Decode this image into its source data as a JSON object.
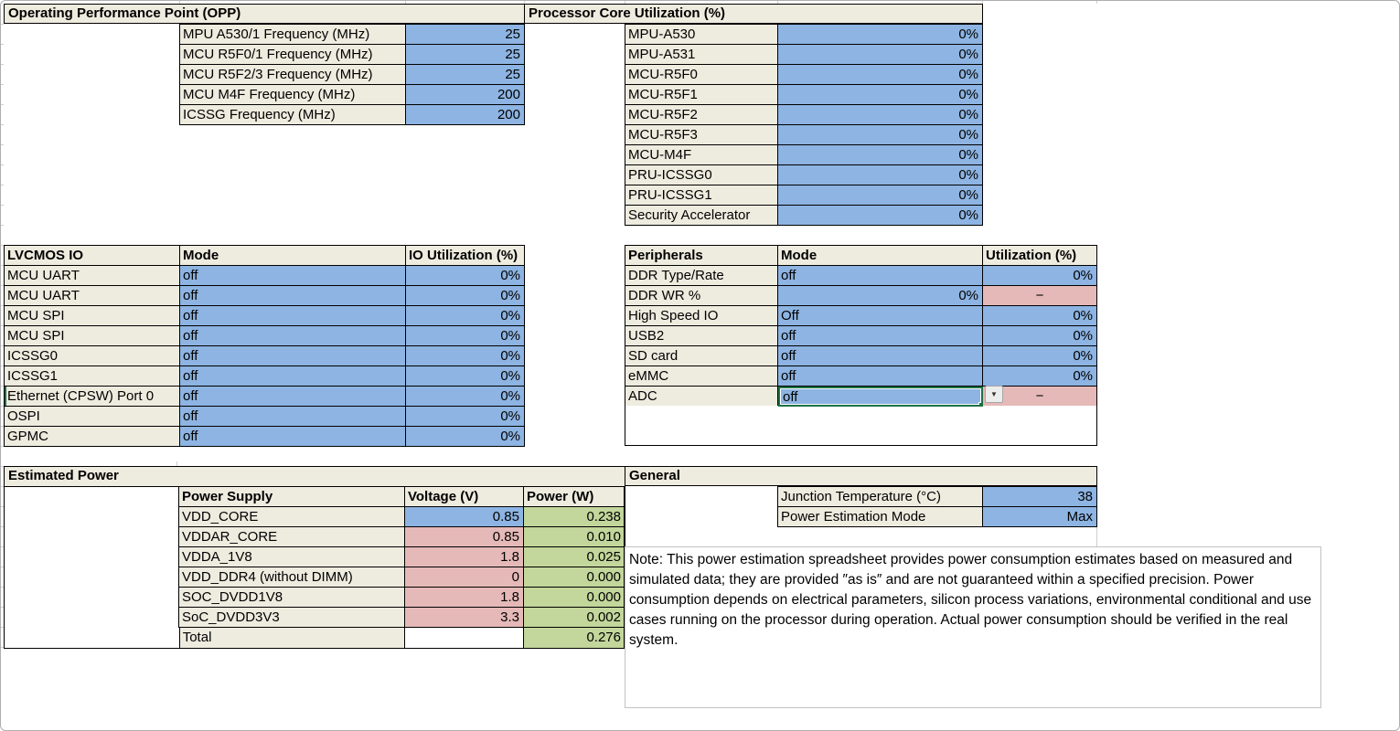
{
  "colors": {
    "input_blue": "#8db4e2",
    "calc_pink": "#e5b9b8",
    "calc_green": "#c3d69b",
    "header_beige": "#eeebdf",
    "selection_green": "#1e7145"
  },
  "icons": {
    "dropdown_arrow": "▼"
  },
  "opp": {
    "title": "Operating Performance Point (OPP)",
    "rows": [
      {
        "label": "MPU A530/1 Frequency (MHz)",
        "value": "25"
      },
      {
        "label": "MCU R5F0/1 Frequency (MHz)",
        "value": "25"
      },
      {
        "label": "MCU R5F2/3 Frequency (MHz)",
        "value": "25"
      },
      {
        "label": "MCU M4F Frequency (MHz)",
        "value": "200"
      },
      {
        "label": "ICSSG Frequency (MHz)",
        "value": "200"
      }
    ]
  },
  "core_utilization": {
    "title": "Processor Core Utilization (%)",
    "rows": [
      {
        "label": "MPU-A530",
        "value": "0%"
      },
      {
        "label": "MPU-A531",
        "value": "0%"
      },
      {
        "label": "MCU-R5F0",
        "value": "0%"
      },
      {
        "label": "MCU-R5F1",
        "value": "0%"
      },
      {
        "label": "MCU-R5F2",
        "value": "0%"
      },
      {
        "label": "MCU-R5F3",
        "value": "0%"
      },
      {
        "label": "MCU-M4F",
        "value": "0%"
      },
      {
        "label": "PRU-ICSSG0",
        "value": "0%"
      },
      {
        "label": "PRU-ICSSG1",
        "value": "0%"
      },
      {
        "label": "Security Accelerator",
        "value": "0%"
      }
    ]
  },
  "lvcmos_io": {
    "headers": {
      "name": "LVCMOS IO",
      "mode": "Mode",
      "utilization": "IO Utilization (%)"
    },
    "rows": [
      {
        "label": "MCU UART",
        "mode": "off",
        "utilization": "0%",
        "label_class": ""
      },
      {
        "label": "MCU UART",
        "mode": "off",
        "utilization": "0%",
        "label_class": ""
      },
      {
        "label": "MCU SPI",
        "mode": "off",
        "utilization": "0%",
        "label_class": ""
      },
      {
        "label": "MCU SPI",
        "mode": "off",
        "utilization": "0%",
        "label_class": ""
      },
      {
        "label": "ICSSG0",
        "mode": "off",
        "utilization": "0%",
        "label_class": ""
      },
      {
        "label": "ICSSG1",
        "mode": "off",
        "utilization": "0%",
        "label_class": ""
      },
      {
        "label": "Ethernet (CPSW) Port 0",
        "mode": "off",
        "utilization": "0%",
        "label_class": "active-edge"
      },
      {
        "label": "OSPI",
        "mode": "off",
        "utilization": "0%",
        "label_class": ""
      },
      {
        "label": "GPMC",
        "mode": "off",
        "utilization": "0%",
        "label_class": ""
      }
    ]
  },
  "peripherals": {
    "headers": {
      "name": "Peripherals",
      "mode": "Mode",
      "utilization": "Utilization (%)"
    },
    "rows": [
      {
        "label": "DDR Type/Rate",
        "mode": "off",
        "mode_class": "blue",
        "utilization": "0%",
        "util_class": "blue right"
      },
      {
        "label": "DDR WR %",
        "mode": "0%",
        "mode_class": "blue right",
        "utilization": "−",
        "util_class": "pink"
      },
      {
        "label": "High Speed IO",
        "mode": "Off",
        "mode_class": "blue",
        "utilization": "0%",
        "util_class": "blue right"
      },
      {
        "label": "USB2",
        "mode": "off",
        "mode_class": "blue",
        "utilization": "0%",
        "util_class": "blue right"
      },
      {
        "label": "SD card",
        "mode": "off",
        "mode_class": "blue",
        "utilization": "0%",
        "util_class": "blue right"
      },
      {
        "label": "eMMC",
        "mode": "off",
        "mode_class": "blue",
        "utilization": "0%",
        "util_class": "blue right"
      },
      {
        "label": "ADC",
        "mode": "off",
        "mode_class": "blue selected",
        "utilization": "−",
        "util_class": "pink"
      }
    ]
  },
  "estimated_power": {
    "title": "Estimated Power",
    "headers": {
      "supply": "Power Supply",
      "voltage": "Voltage (V)",
      "power": "Power (W)"
    },
    "rows": [
      {
        "supply": "VDD_CORE",
        "voltage": "0.85",
        "voltage_class": "blue right",
        "power": "0.238"
      },
      {
        "supply": "VDDAR_CORE",
        "voltage": "0.85",
        "voltage_class": "pink right",
        "power": "0.010"
      },
      {
        "supply": "VDDA_1V8",
        "voltage": "1.8",
        "voltage_class": "pink right",
        "power": "0.025"
      },
      {
        "supply": "VDD_DDR4 (without DIMM)",
        "voltage": "0",
        "voltage_class": "pink right",
        "power": "0.000"
      },
      {
        "supply": "SOC_DVDD1V8",
        "voltage": "1.8",
        "voltage_class": "pink right",
        "power": "0.000"
      },
      {
        "supply": "SoC_DVDD3V3",
        "voltage": "3.3",
        "voltage_class": "pink right",
        "power": "0.002"
      }
    ],
    "total": {
      "label": "Total",
      "power": "0.276"
    }
  },
  "general": {
    "title": "General",
    "rows": [
      {
        "label": "Junction Temperature (°C)",
        "value": "38"
      },
      {
        "label": "Power Estimation Mode",
        "value": "Max"
      }
    ]
  },
  "note": {
    "text": "Note: This power estimation spreadsheet provides power consumption estimates based on measured and simulated data; they are provided ″as is″ and are not guaranteed within a specified precision. Power consumption depends on electrical parameters, silicon process variations, environmental conditional and use cases running on the processor during operation. Actual power consumption should be verified in the real system."
  }
}
